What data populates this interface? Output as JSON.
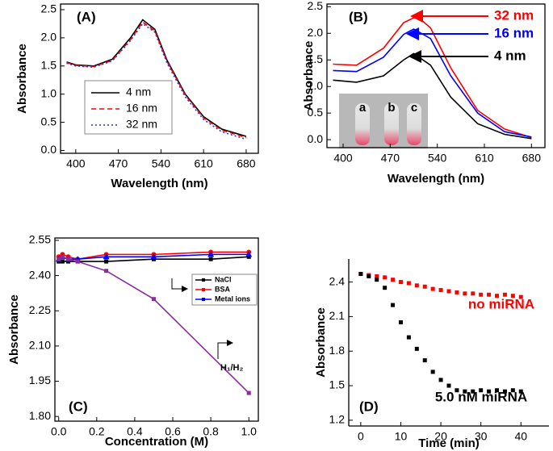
{
  "chart_data": [
    {
      "type": "line",
      "title": "(A)",
      "xlabel": "Wavelength (nm)",
      "ylabel": "Absorbance",
      "xlim": [
        375,
        700
      ],
      "xticks": [
        400,
        470,
        540,
        610,
        680
      ],
      "ylim": [
        -0.05,
        2.6
      ],
      "yticks": [
        {
          "value": 0,
          "label": "0.0"
        },
        0.5,
        {
          "value": 1,
          "label": "1.0"
        },
        1.5,
        {
          "value": 2,
          "label": "2.0"
        },
        2.5
      ],
      "legend": true,
      "series": [
        {
          "name": "4 nm",
          "color": "#000000",
          "line_style": "solid",
          "x": [
            385,
            400,
            430,
            460,
            490,
            510,
            530,
            550,
            580,
            610,
            640,
            680
          ],
          "values": [
            1.57,
            1.52,
            1.5,
            1.62,
            2.0,
            2.32,
            2.15,
            1.6,
            1.0,
            0.6,
            0.38,
            0.25
          ]
        },
        {
          "name": "16 nm",
          "color": "#ff0000",
          "line_style": "dashed",
          "x": [
            385,
            400,
            430,
            460,
            490,
            510,
            530,
            550,
            580,
            610,
            640,
            680
          ],
          "values": [
            1.56,
            1.51,
            1.49,
            1.6,
            1.97,
            2.28,
            2.12,
            1.58,
            0.98,
            0.58,
            0.36,
            0.23
          ]
        },
        {
          "name": "32 nm",
          "color": "#3333cc",
          "line_style": "dotted",
          "x": [
            385,
            400,
            430,
            460,
            490,
            510,
            530,
            550,
            580,
            610,
            640,
            680
          ],
          "values": [
            1.55,
            1.5,
            1.48,
            1.59,
            1.95,
            2.25,
            2.1,
            1.55,
            0.95,
            0.55,
            0.33,
            0.2
          ]
        }
      ]
    },
    {
      "type": "line",
      "title": "(B)",
      "xlabel": "Wavelength (nm)",
      "ylabel": "Absorbance",
      "xlim": [
        376,
        700
      ],
      "xticks": [
        400,
        470,
        540,
        610,
        680
      ],
      "ylim": [
        -0.15,
        2.55
      ],
      "yticks": [
        {
          "value": 0,
          "label": "0.0"
        },
        0.5,
        {
          "value": 1,
          "label": "1.0"
        },
        1.5,
        {
          "value": 2,
          "label": "2.0"
        },
        2.5
      ],
      "legend": false,
      "inset_labels": [
        "a",
        "b",
        "c"
      ],
      "series": [
        {
          "name": "32 nm",
          "color": "#ff0000",
          "line_style": "solid",
          "x": [
            385,
            420,
            460,
            490,
            510,
            530,
            560,
            600,
            640,
            680
          ],
          "values": [
            1.42,
            1.4,
            1.72,
            2.2,
            2.32,
            2.1,
            1.35,
            0.55,
            0.2,
            0.04
          ]
        },
        {
          "name": "16 nm",
          "color": "#0000ff",
          "line_style": "solid",
          "x": [
            385,
            420,
            460,
            490,
            505,
            530,
            560,
            600,
            640,
            680
          ],
          "values": [
            1.3,
            1.28,
            1.55,
            1.98,
            2.08,
            1.9,
            1.2,
            0.5,
            0.15,
            0.05
          ]
        },
        {
          "name": "4 nm",
          "color": "#000000",
          "line_style": "solid",
          "x": [
            385,
            420,
            460,
            490,
            505,
            530,
            560,
            600,
            640,
            680
          ],
          "values": [
            1.12,
            1.08,
            1.2,
            1.5,
            1.62,
            1.4,
            0.8,
            0.3,
            0.1,
            0.02
          ]
        }
      ]
    },
    {
      "type": "line",
      "title": "(C)",
      "xlabel": "Concentration (M)",
      "ylabel": "Absorbance",
      "xlim": [
        -0.02,
        1.05
      ],
      "xticks": [
        {
          "value": 0,
          "label": "0.0"
        },
        0.2,
        0.4,
        0.6,
        0.8,
        {
          "value": 1,
          "label": "1.0"
        }
      ],
      "ylim": [
        1.78,
        2.56
      ],
      "yticks": [
        {
          "value": 1.8,
          "label": "1.80"
        },
        1.95,
        {
          "value": 2.1,
          "label": "2.10"
        },
        2.25,
        {
          "value": 2.4,
          "label": "2.40"
        },
        2.55
      ],
      "legend": true,
      "series": [
        {
          "name": "NaCl",
          "color": "#000000",
          "marker": "square",
          "in_legend": true,
          "x": [
            0,
            0.02,
            0.05,
            0.1,
            0.25,
            0.5,
            0.8,
            1.0
          ],
          "values": [
            2.46,
            2.46,
            2.46,
            2.46,
            2.46,
            2.47,
            2.47,
            2.48
          ]
        },
        {
          "name": "BSA",
          "color": "#ff0000",
          "marker": "circle",
          "in_legend": true,
          "x": [
            0,
            0.02,
            0.05,
            0.1,
            0.25,
            0.5,
            0.8,
            1.0
          ],
          "values": [
            2.48,
            2.49,
            2.48,
            2.47,
            2.49,
            2.49,
            2.5,
            2.5
          ]
        },
        {
          "name": "Metal ions",
          "color": "#0000ff",
          "marker": "triangle",
          "in_legend": true,
          "x": [
            0,
            0.02,
            0.05,
            0.1,
            0.25,
            0.5,
            0.8,
            1.0
          ],
          "values": [
            2.47,
            2.48,
            2.47,
            2.47,
            2.48,
            2.48,
            2.49,
            2.49
          ]
        },
        {
          "name": "H₁/H₂",
          "color": "#8b2c9e",
          "marker": "square",
          "in_legend": false,
          "x": [
            0,
            0.02,
            0.05,
            0.1,
            0.25,
            0.5,
            1.0
          ],
          "values": [
            2.47,
            2.48,
            2.47,
            2.46,
            2.42,
            2.3,
            1.9
          ]
        }
      ]
    },
    {
      "type": "line",
      "title": "(D)",
      "xlabel": "Time (min)",
      "ylabel": "Absorbance",
      "xlim": [
        -3,
        47
      ],
      "xticks": [
        0,
        10,
        20,
        30,
        40
      ],
      "ylim": [
        1.15,
        2.6
      ],
      "yticks": [
        1.2,
        1.5,
        1.8,
        2.1,
        2.4
      ],
      "legend": false,
      "series": [
        {
          "name": "no miRNA",
          "color": "#ff0000",
          "marker": "square",
          "x": [
            0,
            2,
            4,
            6,
            8,
            10,
            12,
            14,
            16,
            18,
            20,
            22,
            24,
            26,
            28,
            30,
            32,
            34,
            36,
            38,
            40
          ],
          "values": [
            2.47,
            2.46,
            2.45,
            2.44,
            2.42,
            2.4,
            2.39,
            2.37,
            2.36,
            2.34,
            2.33,
            2.32,
            2.31,
            2.3,
            2.3,
            2.29,
            2.29,
            2.28,
            2.29,
            2.28,
            2.27
          ]
        },
        {
          "name": "5.0 nM miRNA",
          "color": "#000000",
          "marker": "square",
          "x": [
            0,
            2,
            4,
            6,
            8,
            10,
            12,
            14,
            16,
            18,
            20,
            22,
            24,
            26,
            28,
            30,
            32,
            34,
            36,
            38,
            40
          ],
          "values": [
            2.47,
            2.45,
            2.42,
            2.35,
            2.2,
            2.05,
            1.92,
            1.82,
            1.72,
            1.62,
            1.55,
            1.5,
            1.46,
            1.45,
            1.45,
            1.46,
            1.45,
            1.46,
            1.45,
            1.46,
            1.45
          ]
        }
      ]
    }
  ]
}
